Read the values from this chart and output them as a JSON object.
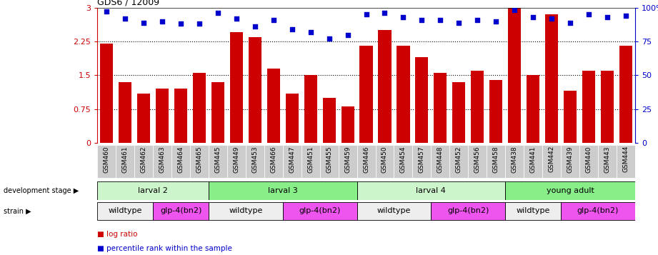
{
  "title": "GDS6 / 12009",
  "samples": [
    "GSM460",
    "GSM461",
    "GSM462",
    "GSM463",
    "GSM464",
    "GSM465",
    "GSM445",
    "GSM449",
    "GSM453",
    "GSM466",
    "GSM447",
    "GSM451",
    "GSM455",
    "GSM459",
    "GSM446",
    "GSM450",
    "GSM454",
    "GSM457",
    "GSM448",
    "GSM452",
    "GSM456",
    "GSM458",
    "GSM438",
    "GSM441",
    "GSM442",
    "GSM439",
    "GSM440",
    "GSM443",
    "GSM444"
  ],
  "log_ratio": [
    2.2,
    1.35,
    1.1,
    1.2,
    1.2,
    1.55,
    1.35,
    2.45,
    2.35,
    1.65,
    1.1,
    1.5,
    1.0,
    0.8,
    2.15,
    2.5,
    2.15,
    1.9,
    1.55,
    1.35,
    1.6,
    1.4,
    3.0,
    1.5,
    2.85,
    1.15,
    1.6,
    1.6,
    2.15
  ],
  "percentile": [
    97,
    92,
    89,
    90,
    88,
    88,
    96,
    92,
    86,
    91,
    84,
    82,
    77,
    80,
    95,
    96,
    93,
    91,
    91,
    89,
    91,
    90,
    98,
    93,
    92,
    89,
    95,
    93,
    94
  ],
  "bar_color": "#cc0000",
  "dot_color": "#0000cc",
  "ylim_left": [
    0,
    3.0
  ],
  "yticks_left": [
    0,
    0.75,
    1.5,
    2.25,
    3.0
  ],
  "ytick_labels_left": [
    "0",
    "0.75",
    "1.5",
    "2.25",
    "3"
  ],
  "ytick_labels_right": [
    "0",
    "25",
    "50",
    "75",
    "100%"
  ],
  "hlines": [
    0.75,
    1.5,
    2.25
  ],
  "development_stages": [
    {
      "label": "larval 2",
      "start": 0,
      "end": 5,
      "color": "#ccf5cc"
    },
    {
      "label": "larval 3",
      "start": 6,
      "end": 13,
      "color": "#88ee88"
    },
    {
      "label": "larval 4",
      "start": 14,
      "end": 21,
      "color": "#ccf5cc"
    },
    {
      "label": "young adult",
      "start": 22,
      "end": 28,
      "color": "#88ee88"
    }
  ],
  "strains": [
    {
      "label": "wildtype",
      "start": 0,
      "end": 2,
      "color": "#eeeeee"
    },
    {
      "label": "glp-4(bn2)",
      "start": 3,
      "end": 5,
      "color": "#ee55ee"
    },
    {
      "label": "wildtype",
      "start": 6,
      "end": 9,
      "color": "#eeeeee"
    },
    {
      "label": "glp-4(bn2)",
      "start": 10,
      "end": 13,
      "color": "#ee55ee"
    },
    {
      "label": "wildtype",
      "start": 14,
      "end": 17,
      "color": "#eeeeee"
    },
    {
      "label": "glp-4(bn2)",
      "start": 18,
      "end": 21,
      "color": "#ee55ee"
    },
    {
      "label": "wildtype",
      "start": 22,
      "end": 24,
      "color": "#eeeeee"
    },
    {
      "label": "glp-4(bn2)",
      "start": 25,
      "end": 28,
      "color": "#ee55ee"
    }
  ],
  "left_label_color": "#cc0000",
  "right_label_color": "#0000cc",
  "legend_items": [
    {
      "label": "log ratio",
      "color": "#cc0000"
    },
    {
      "label": "percentile rank within the sample",
      "color": "#0000cc"
    }
  ],
  "dev_stage_arrow_label": "development stage",
  "strain_arrow_label": "strain",
  "sample_box_color": "#cccccc"
}
